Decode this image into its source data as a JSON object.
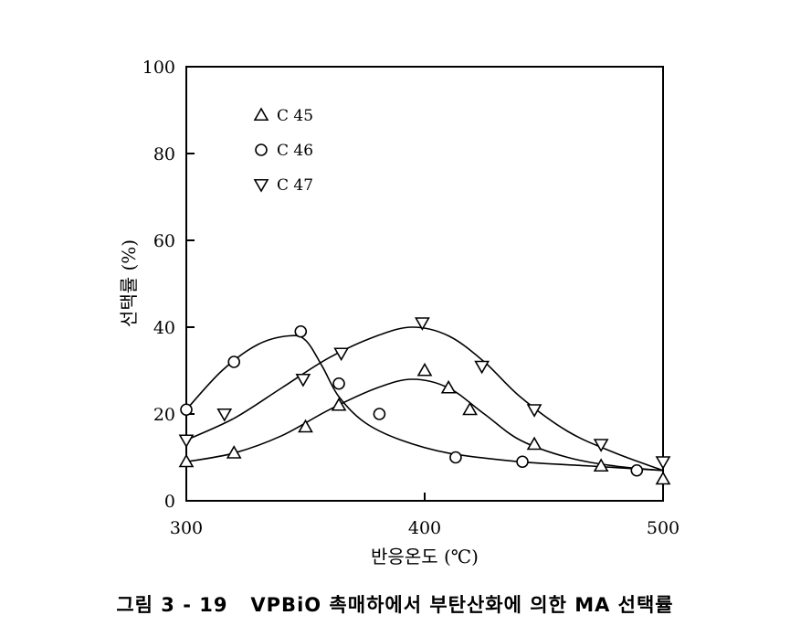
{
  "chart_data": {
    "type": "scatter",
    "xlabel": "반응온도 (℃)",
    "ylabel": "선택률 (%)",
    "xlim": [
      300,
      500
    ],
    "ylim": [
      0,
      100
    ],
    "x_ticks": [
      300,
      400,
      500
    ],
    "y_ticks": [
      0,
      20,
      40,
      60,
      80,
      100
    ],
    "x_tick_labels": [
      "300",
      "400",
      "500"
    ],
    "y_tick_labels": [
      "0",
      "20",
      "40",
      "60",
      "80",
      "100"
    ],
    "legend_position": "top-left",
    "grid": false,
    "series": [
      {
        "name": "C 45",
        "marker": "triangle-up",
        "x": [
          300,
          320,
          350,
          364,
          400,
          410,
          419,
          446,
          474,
          500
        ],
        "y": [
          9,
          11,
          17,
          22,
          30,
          26,
          21,
          13,
          8,
          5
        ],
        "fit_x": [
          300,
          320,
          340,
          360,
          380,
          395,
          410,
          425,
          440,
          460,
          480,
          500
        ],
        "fit_y": [
          9,
          11,
          15,
          21,
          26,
          28,
          26,
          20,
          14,
          10,
          8,
          7
        ]
      },
      {
        "name": "C 46",
        "marker": "circle",
        "x": [
          300,
          320,
          348,
          364,
          381,
          413,
          441,
          489
        ],
        "y": [
          21,
          32,
          39,
          27,
          20,
          10,
          9,
          7
        ],
        "fit_x": [
          300,
          315,
          330,
          343,
          350,
          357,
          364,
          375,
          390,
          410,
          440,
          470,
          500
        ],
        "fit_y": [
          21,
          30,
          36,
          38,
          37,
          31,
          24,
          18,
          14,
          11,
          9,
          8,
          7
        ]
      },
      {
        "name": "C 47",
        "marker": "triangle-down",
        "x": [
          300,
          316,
          349,
          365,
          399,
          424,
          446,
          474,
          500
        ],
        "y": [
          14,
          20,
          28,
          34,
          41,
          31,
          21,
          13,
          9
        ],
        "fit_x": [
          300,
          320,
          340,
          360,
          380,
          395,
          410,
          425,
          440,
          460,
          480,
          500
        ],
        "fit_y": [
          14,
          19,
          26,
          33,
          38,
          40,
          38,
          32,
          24,
          16,
          11,
          7
        ]
      }
    ]
  },
  "caption": "그림 3 - 19   VPBiO 촉매하에서 부탄산화에 의한 MA 선택률"
}
